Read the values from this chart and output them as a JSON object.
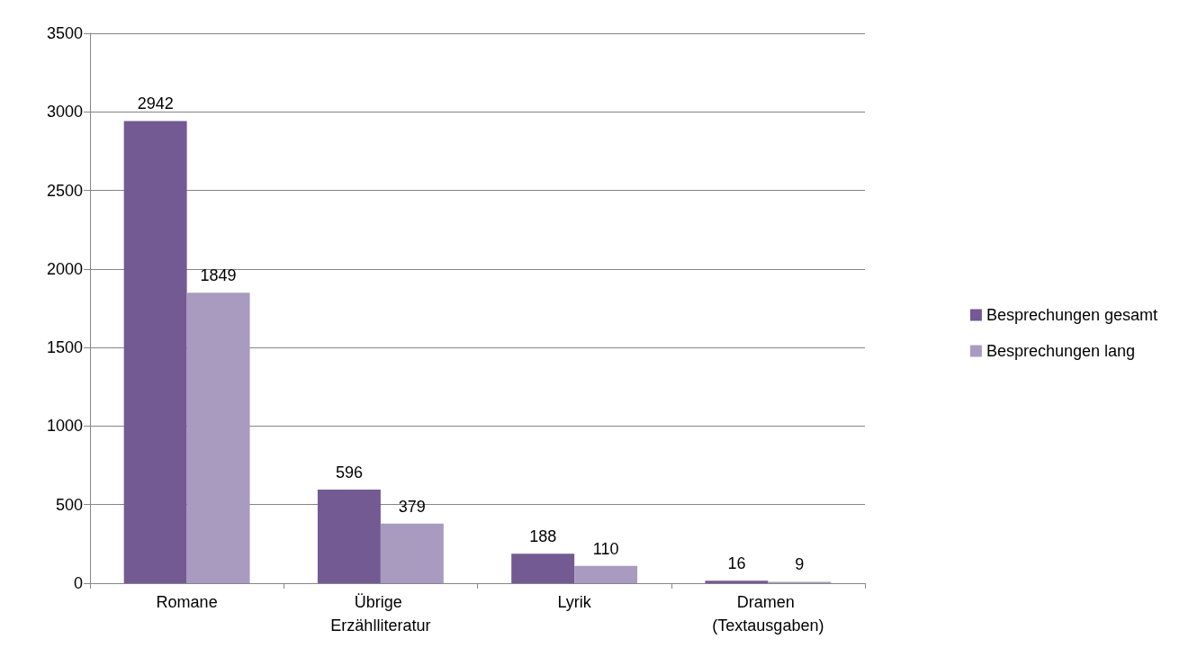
{
  "chart_data": {
    "type": "bar",
    "categories": [
      "Romane",
      "Übrige Erzählliteratur",
      "Lyrik",
      "Dramen (Textausgaben)"
    ],
    "series": [
      {
        "name": "Besprechungen gesamt",
        "color": "#735a92",
        "values": [
          2942,
          596,
          188,
          16
        ]
      },
      {
        "name": "Besprechungen lang",
        "color": "#a99bc0",
        "values": [
          1849,
          379,
          110,
          9
        ]
      }
    ],
    "ylim": [
      0,
      3500
    ],
    "yticks": [
      0,
      500,
      1000,
      1500,
      2000,
      2500,
      3000,
      3500
    ],
    "grid": "y",
    "legend": "right",
    "data_labels": true
  }
}
